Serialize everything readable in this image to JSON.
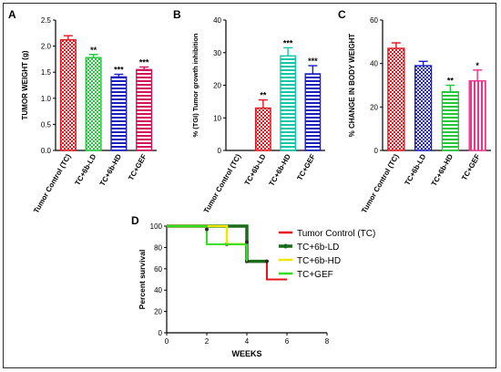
{
  "panels": {
    "a": "A",
    "b": "B",
    "c": "C",
    "d": "D"
  },
  "chart_data": [
    {
      "id": "A",
      "type": "bar",
      "categories": [
        "Tumor Control (TC)",
        "TC+6b-LD",
        "TC+6b-HD",
        "TC+GEF"
      ],
      "values": [
        2.12,
        1.78,
        1.41,
        1.55
      ],
      "errors": [
        0.08,
        0.06,
        0.05,
        0.05
      ],
      "significance": [
        "",
        "**",
        "***",
        "***"
      ],
      "colors": [
        "#e8141c",
        "#22c83a",
        "#1b1fc0",
        "#d4145a"
      ],
      "patterns": [
        "checker",
        "checker",
        "hlines",
        "hlines"
      ],
      "ylabel": "TUMOR WEIGHT (g)",
      "ylim": [
        0,
        2.5
      ],
      "yticks": [
        0.0,
        0.5,
        1.0,
        1.5,
        2.0,
        2.5
      ],
      "yticklabels": [
        "0.0",
        "0.5",
        "1.0",
        "1.5",
        "2.0",
        "2.5"
      ]
    },
    {
      "id": "B",
      "type": "bar",
      "categories": [
        "Tumor Control (TC)",
        "TC+6b-LD",
        "TC+6b-HD",
        "TC+GEF"
      ],
      "values": [
        0,
        13,
        29,
        23.5
      ],
      "errors": [
        0,
        2.5,
        2.5,
        2.5
      ],
      "significance": [
        "",
        "**",
        "***",
        "***"
      ],
      "colors": [
        "#e8141c",
        "#e8141c",
        "#10c8a8",
        "#1b1fc0"
      ],
      "patterns": [
        "checker",
        "checker",
        "hlines",
        "hlines"
      ],
      "ylabel": "% (TGI) Tumor growth inhibition",
      "ylim": [
        0,
        40
      ],
      "yticks": [
        0,
        10,
        20,
        30,
        40
      ],
      "yticklabels": [
        "0",
        "10",
        "20",
        "30",
        "40"
      ]
    },
    {
      "id": "C",
      "type": "bar",
      "categories": [
        "Tumor Control (TC)",
        "TC+6b-LD",
        "TC+6b-HD",
        "TC+GEF"
      ],
      "values": [
        47,
        39,
        27,
        32
      ],
      "errors": [
        2.5,
        2,
        3,
        5
      ],
      "significance": [
        "",
        "",
        "**",
        "*"
      ],
      "colors": [
        "#e8141c",
        "#1b1fc0",
        "#22c83a",
        "#f2308a"
      ],
      "patterns": [
        "checker",
        "checker",
        "hlines",
        "vlines"
      ],
      "ylabel": "% CHANGE IN BODY WEIGHT",
      "ylim": [
        0,
        60
      ],
      "yticks": [
        0,
        20,
        40,
        60
      ],
      "yticklabels": [
        "0",
        "20",
        "40",
        "60"
      ]
    },
    {
      "id": "D",
      "type": "line",
      "xlabel": "WEEKS",
      "ylabel": "Percent survival",
      "xlim": [
        0,
        8
      ],
      "ylim": [
        0,
        100
      ],
      "xticks": [
        0,
        2,
        4,
        6,
        8
      ],
      "xticklabels": [
        "0",
        "2",
        "4",
        "6",
        "8"
      ],
      "yticks": [
        0,
        20,
        40,
        60,
        80,
        100
      ],
      "yticklabels": [
        "0",
        "20",
        "40",
        "60",
        "80",
        "100"
      ],
      "legend_position": "right",
      "series": [
        {
          "name": "Tumor Control (TC)",
          "color": "#e8141c",
          "width": 2,
          "x": [
            0,
            4,
            4,
            5,
            5,
            6
          ],
          "y": [
            100,
            100,
            67,
            67,
            50,
            50
          ],
          "markers": []
        },
        {
          "name": "TC+6b-LD",
          "color": "#1a6b1a",
          "width": 3.5,
          "x": [
            0,
            4,
            4,
            5
          ],
          "y": [
            100,
            100,
            67,
            67
          ],
          "markers": [
            [
              3,
              83
            ],
            [
              4,
              67
            ],
            [
              5,
              67
            ]
          ]
        },
        {
          "name": "TC+6b-HD",
          "color": "#f2e600",
          "width": 2.5,
          "x": [
            0,
            3,
            3,
            4
          ],
          "y": [
            100,
            100,
            83,
            83
          ],
          "markers": []
        },
        {
          "name": "TC+GEF",
          "color": "#33dd22",
          "width": 2,
          "x": [
            0,
            2,
            2,
            4,
            4
          ],
          "y": [
            100,
            100,
            83,
            83,
            67
          ],
          "markers": [
            [
              2,
              97
            ],
            [
              4,
              85
            ]
          ]
        }
      ]
    }
  ]
}
